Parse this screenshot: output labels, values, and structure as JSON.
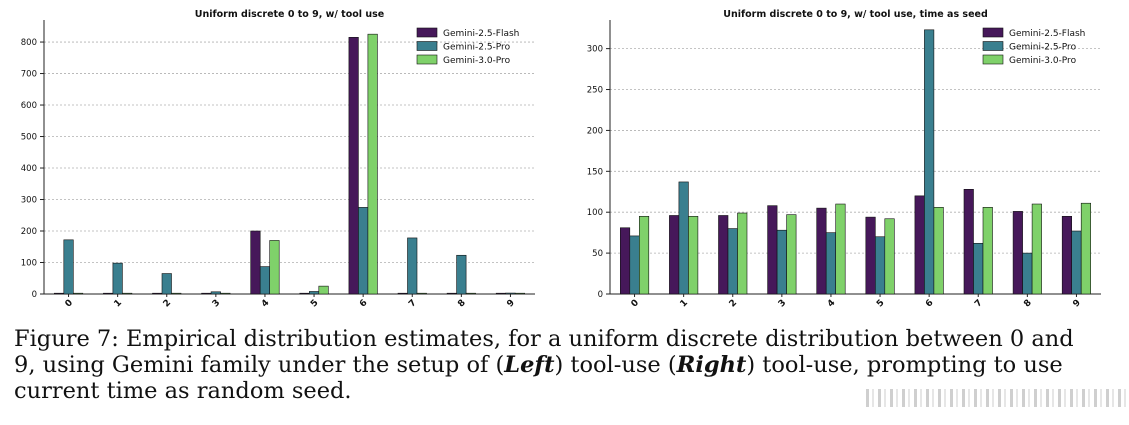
{
  "chart_data": [
    {
      "type": "bar",
      "title": "Uniform discrete 0 to 9, w/ tool use",
      "categories": [
        "0",
        "1",
        "2",
        "3",
        "4",
        "5",
        "6",
        "7",
        "8",
        "9"
      ],
      "ylim": [
        0,
        870
      ],
      "yticks": [
        0,
        100,
        200,
        300,
        400,
        500,
        600,
        700,
        800
      ],
      "grid": "horizontal dotted",
      "legend": "top-right",
      "series": [
        {
          "name": "Gemini-2.5-Flash",
          "color": "#46185a",
          "values": [
            0,
            0,
            0,
            0,
            200,
            0,
            815,
            0,
            0,
            0
          ]
        },
        {
          "name": "Gemini-2.5-Pro",
          "color": "#3a7f8f",
          "values": [
            172,
            98,
            65,
            7,
            87,
            8,
            275,
            178,
            123,
            3
          ]
        },
        {
          "name": "Gemini-3.0-Pro",
          "color": "#7fd16a",
          "values": [
            0,
            0,
            0,
            0,
            170,
            25,
            825,
            0,
            0,
            0
          ]
        }
      ]
    },
    {
      "type": "bar",
      "title": "Uniform discrete 0 to 9, w/ tool use, time as seed",
      "categories": [
        "0",
        "1",
        "2",
        "3",
        "4",
        "5",
        "6",
        "7",
        "8",
        "9"
      ],
      "ylim": [
        0,
        335
      ],
      "yticks": [
        0,
        50,
        100,
        150,
        200,
        250,
        300
      ],
      "grid": "horizontal dotted",
      "legend": "top-right",
      "series": [
        {
          "name": "Gemini-2.5-Flash",
          "color": "#46185a",
          "values": [
            81,
            96,
            96,
            108,
            105,
            94,
            120,
            128,
            101,
            95
          ]
        },
        {
          "name": "Gemini-2.5-Pro",
          "color": "#3a7f8f",
          "values": [
            71,
            137,
            80,
            78,
            75,
            70,
            323,
            62,
            50,
            77
          ]
        },
        {
          "name": "Gemini-3.0-Pro",
          "color": "#7fd16a",
          "values": [
            95,
            95,
            99,
            97,
            110,
            92,
            106,
            106,
            110,
            111
          ]
        }
      ]
    }
  ],
  "caption": {
    "line1": "Figure 7: Empirical distribution estimates, for a uniform discrete distribution between 0 and",
    "line2_a": "9, using Gemini family under the setup of (",
    "line2_left": "Left",
    "line2_b": ") tool-use (",
    "line2_right": "Right",
    "line2_c": ") tool-use, prompting to use",
    "line3": "current time as random seed."
  }
}
